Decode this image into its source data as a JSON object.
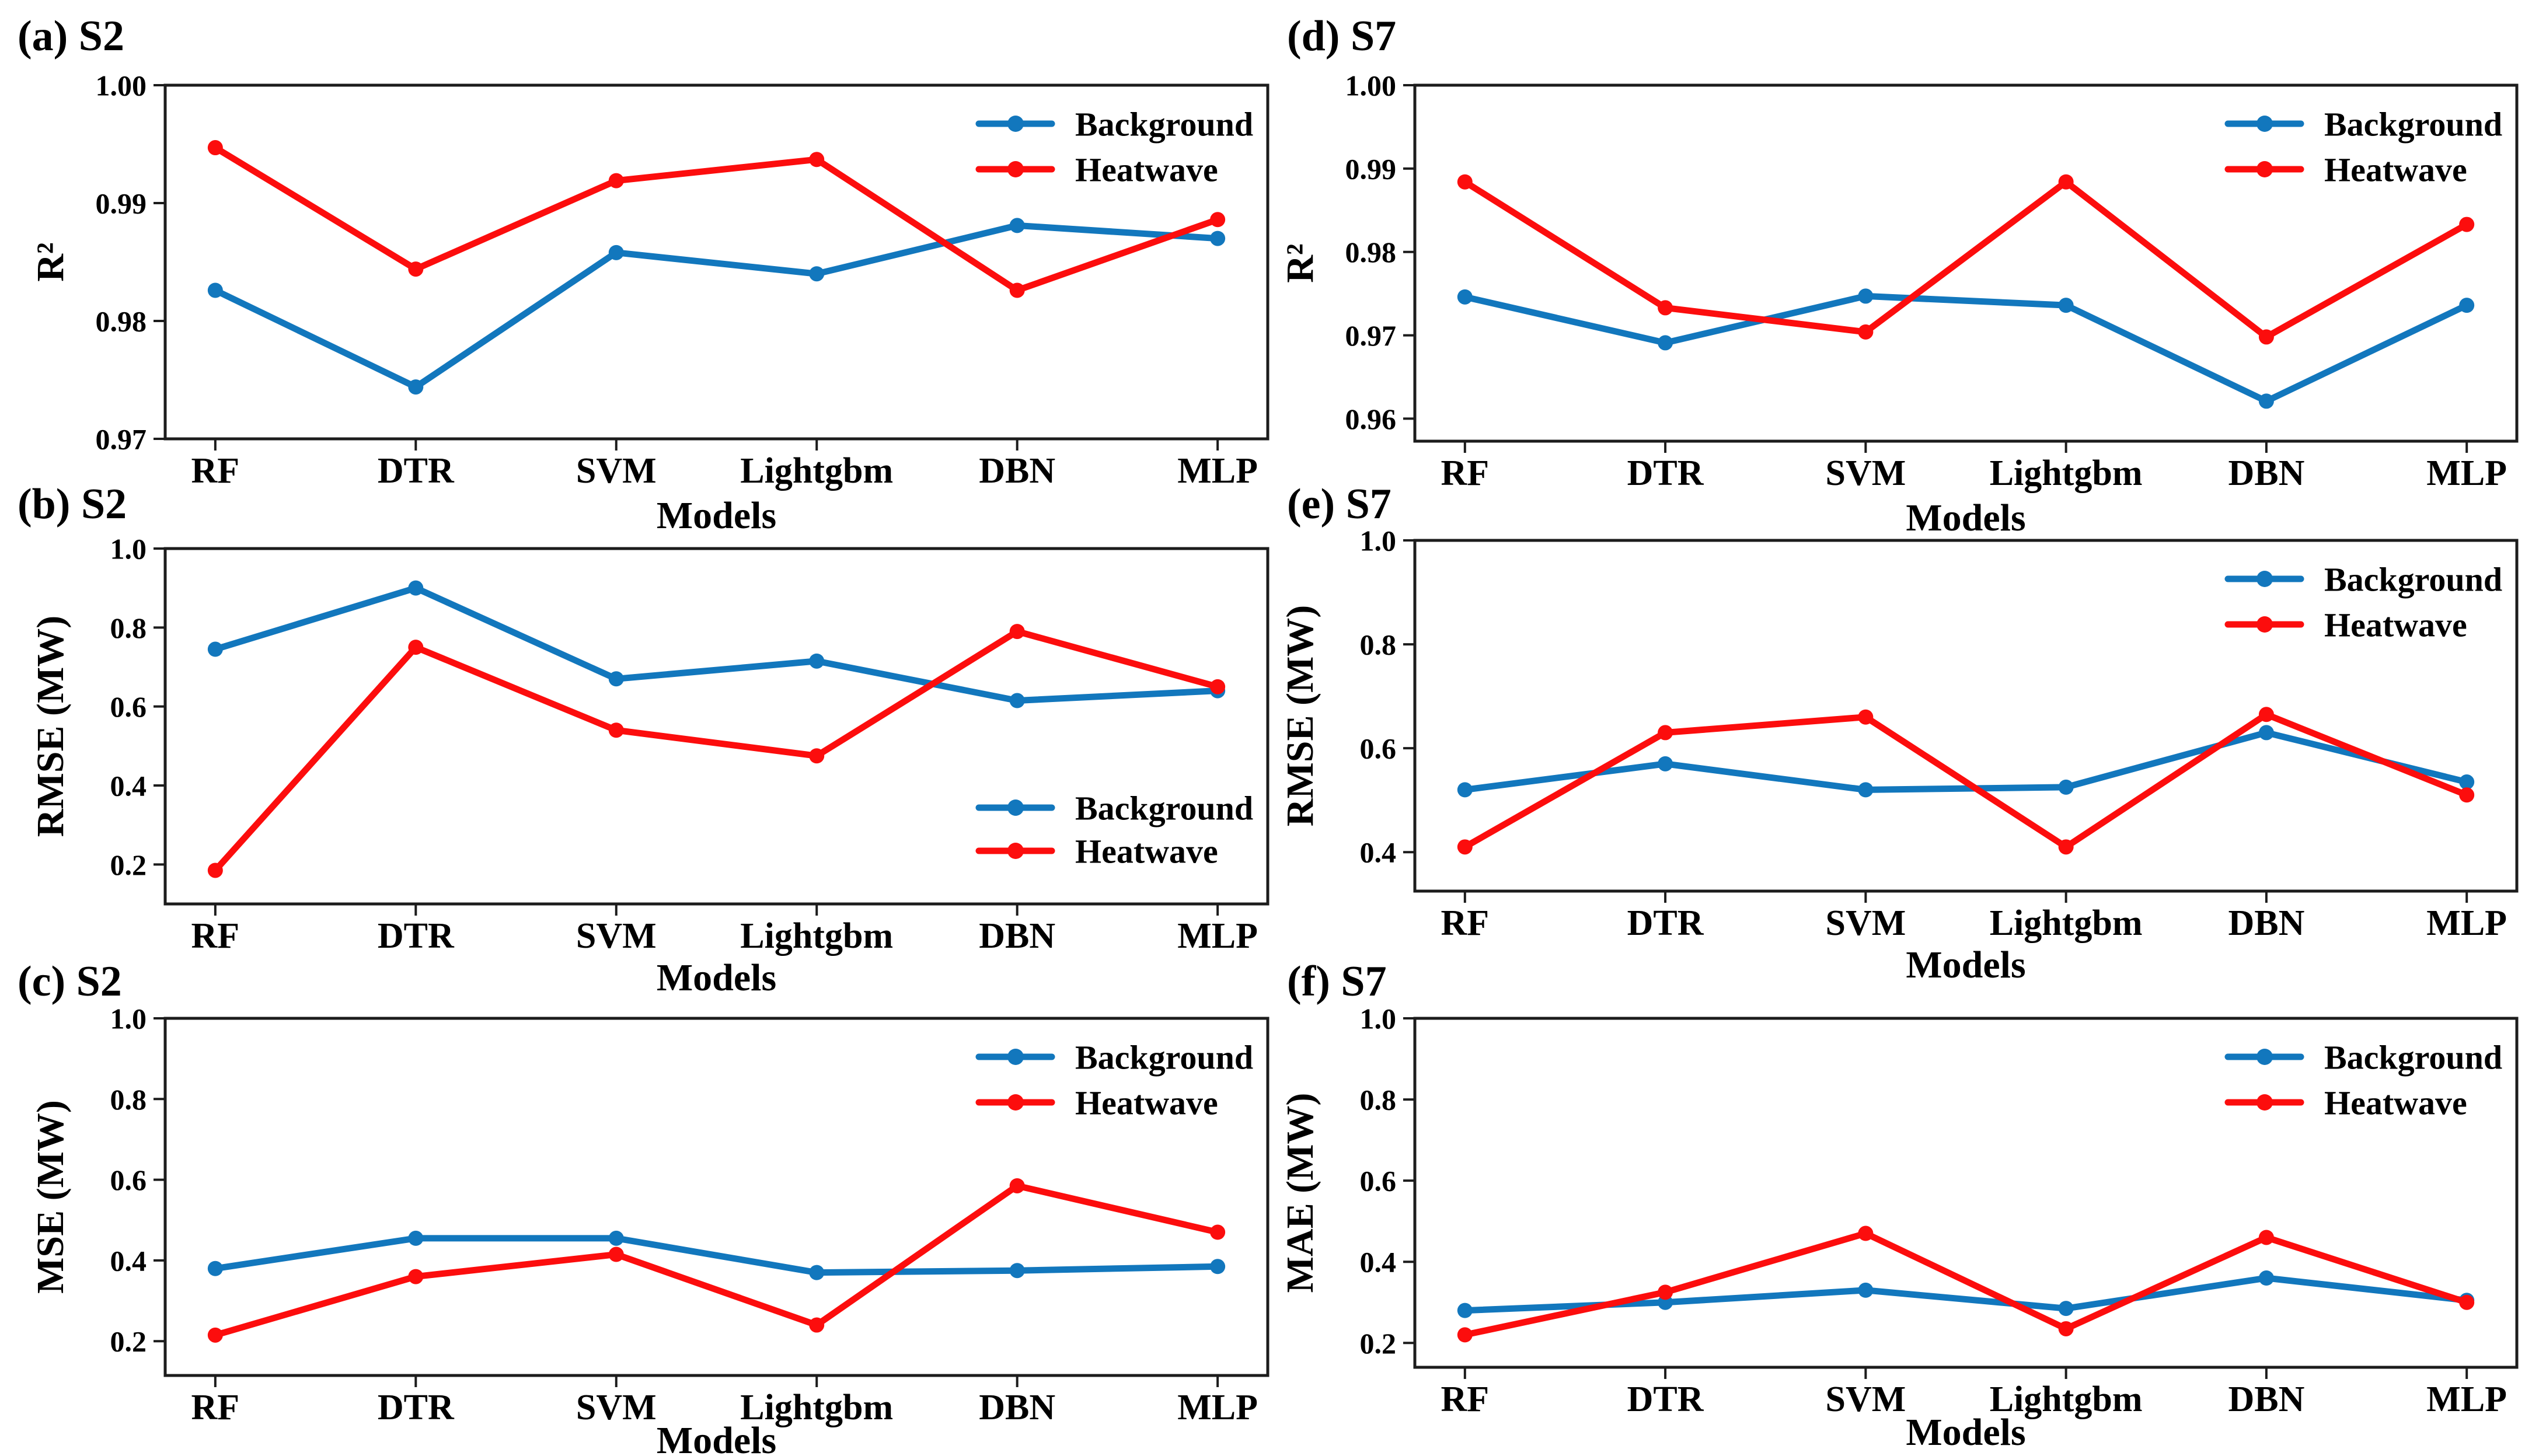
{
  "figure": {
    "background_color": "#ffffff",
    "axis_color": "#1c1c1c",
    "series_colors": {
      "background": "#1277bd",
      "heatwave": "#fc0d0d"
    }
  },
  "chart_data": [
    {
      "id": "a",
      "type": "line",
      "title": "(a) S2",
      "xlabel": "Models",
      "ylabel": "R²",
      "categories": [
        "RF",
        "DTR",
        "SVM",
        "Lightgbm",
        "DBN",
        "MLP"
      ],
      "ylim": [
        0.97,
        1.0
      ],
      "yticks": [
        0.97,
        0.98,
        0.99,
        1.0
      ],
      "ytick_labels": [
        "0.97",
        "0.98",
        "0.99",
        "1.00"
      ],
      "grid": false,
      "legend_position": "upper-right",
      "series": [
        {
          "name": "Background",
          "color": "#1277bd",
          "values": [
            0.9826,
            0.9744,
            0.9858,
            0.984,
            0.9881,
            0.987
          ]
        },
        {
          "name": "Heatwave",
          "color": "#fc0d0d",
          "values": [
            0.9947,
            0.9844,
            0.9919,
            0.9937,
            0.9826,
            0.9886
          ]
        }
      ]
    },
    {
      "id": "b",
      "type": "line",
      "title": "(b) S2",
      "xlabel": "Models",
      "ylabel": "RMSE (MW)",
      "categories": [
        "RF",
        "DTR",
        "SVM",
        "Lightgbm",
        "DBN",
        "MLP"
      ],
      "ylim": [
        0.1,
        1.0
      ],
      "yticks": [
        0.2,
        0.4,
        0.6,
        0.8,
        1.0
      ],
      "ytick_labels": [
        "0.2",
        "0.4",
        "0.6",
        "0.8",
        "1.0"
      ],
      "grid": false,
      "legend_position": "lower-right",
      "series": [
        {
          "name": "Background",
          "color": "#1277bd",
          "values": [
            0.745,
            0.9,
            0.67,
            0.715,
            0.615,
            0.64
          ]
        },
        {
          "name": "Heatwave",
          "color": "#fc0d0d",
          "values": [
            0.185,
            0.75,
            0.54,
            0.475,
            0.79,
            0.65
          ]
        }
      ]
    },
    {
      "id": "c",
      "type": "line",
      "title": "(c) S2",
      "xlabel": "Models",
      "ylabel": "MSE (MW)",
      "categories": [
        "RF",
        "DTR",
        "SVM",
        "Lightgbm",
        "DBN",
        "MLP"
      ],
      "ylim": [
        0.115,
        1.0
      ],
      "yticks": [
        0.2,
        0.4,
        0.6,
        0.8,
        1.0
      ],
      "ytick_labels": [
        "0.2",
        "0.4",
        "0.6",
        "0.8",
        "1.0"
      ],
      "grid": false,
      "legend_position": "upper-right",
      "series": [
        {
          "name": "Background",
          "color": "#1277bd",
          "values": [
            0.38,
            0.455,
            0.455,
            0.37,
            0.375,
            0.385
          ]
        },
        {
          "name": "Heatwave",
          "color": "#fc0d0d",
          "values": [
            0.215,
            0.36,
            0.415,
            0.24,
            0.585,
            0.47
          ]
        }
      ]
    },
    {
      "id": "d",
      "type": "line",
      "title": "(d) S7",
      "xlabel": "Models",
      "ylabel": "R²",
      "categories": [
        "RF",
        "DTR",
        "SVM",
        "Lightgbm",
        "DBN",
        "MLP"
      ],
      "ylim": [
        0.9573,
        1.0
      ],
      "yticks": [
        0.96,
        0.97,
        0.98,
        0.99,
        1.0
      ],
      "ytick_labels": [
        "0.96",
        "0.97",
        "0.98",
        "0.99",
        "1.00"
      ],
      "grid": false,
      "legend_position": "upper-right",
      "series": [
        {
          "name": "Background",
          "color": "#1277bd",
          "values": [
            0.9746,
            0.9691,
            0.9747,
            0.9736,
            0.9621,
            0.9736
          ]
        },
        {
          "name": "Heatwave",
          "color": "#fc0d0d",
          "values": [
            0.9884,
            0.9733,
            0.9704,
            0.9884,
            0.9698,
            0.9833
          ]
        }
      ]
    },
    {
      "id": "e",
      "type": "line",
      "title": "(e) S7",
      "xlabel": "Models",
      "ylabel": "RMSE (MW)",
      "categories": [
        "RF",
        "DTR",
        "SVM",
        "Lightgbm",
        "DBN",
        "MLP"
      ],
      "ylim": [
        0.325,
        1.0
      ],
      "yticks": [
        0.4,
        0.6,
        0.8,
        1.0
      ],
      "ytick_labels": [
        "0.4",
        "0.6",
        "0.8",
        "1.0"
      ],
      "grid": false,
      "legend_position": "upper-right",
      "series": [
        {
          "name": "Background",
          "color": "#1277bd",
          "values": [
            0.52,
            0.57,
            0.52,
            0.525,
            0.63,
            0.535
          ]
        },
        {
          "name": "Heatwave",
          "color": "#fc0d0d",
          "values": [
            0.41,
            0.63,
            0.66,
            0.41,
            0.665,
            0.51
          ]
        }
      ]
    },
    {
      "id": "f",
      "type": "line",
      "title": "(f) S7",
      "xlabel": "Models",
      "ylabel": "MAE (MW)",
      "categories": [
        "RF",
        "DTR",
        "SVM",
        "Lightgbm",
        "DBN",
        "MLP"
      ],
      "ylim": [
        0.14,
        1.0
      ],
      "yticks": [
        0.2,
        0.4,
        0.6,
        0.8,
        1.0
      ],
      "ytick_labels": [
        "0.2",
        "0.4",
        "0.6",
        "0.8",
        "1.0"
      ],
      "grid": false,
      "legend_position": "upper-right",
      "series": [
        {
          "name": "Background",
          "color": "#1277bd",
          "values": [
            0.28,
            0.3,
            0.33,
            0.285,
            0.36,
            0.305
          ]
        },
        {
          "name": "Heatwave",
          "color": "#fc0d0d",
          "values": [
            0.22,
            0.325,
            0.47,
            0.235,
            0.46,
            0.3
          ]
        }
      ]
    }
  ]
}
